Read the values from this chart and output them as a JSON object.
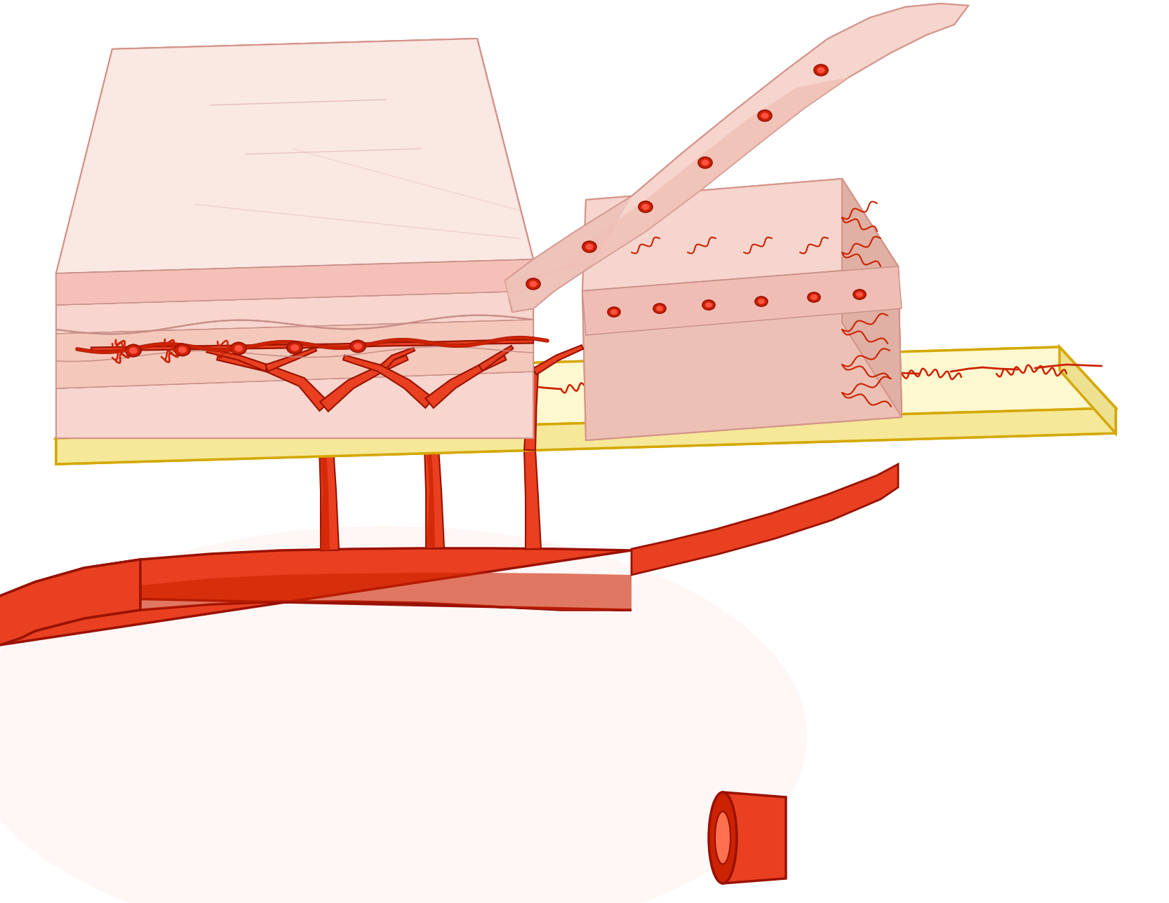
{
  "bg": "#ffffff",
  "pink_very_light": "#fce8e2",
  "pink_light": "#f5cfc8",
  "pink_mid": "#edbdb5",
  "pink_dark": "#e0a89e",
  "pink_deeper": "#d49088",
  "fascia_top": "#fef9d8",
  "fascia_mid": "#fef0b0",
  "fascia_bot": "#f5e080",
  "fascia_edge": "#d4a800",
  "vessel_fill": "#cc2200",
  "vessel_light": "#e84020",
  "vessel_outline": "#991100",
  "vessel_inner": "#ff5040",
  "small_v": "#cc2200",
  "figw": 16.66,
  "figh": 12.88,
  "dpi": 100
}
